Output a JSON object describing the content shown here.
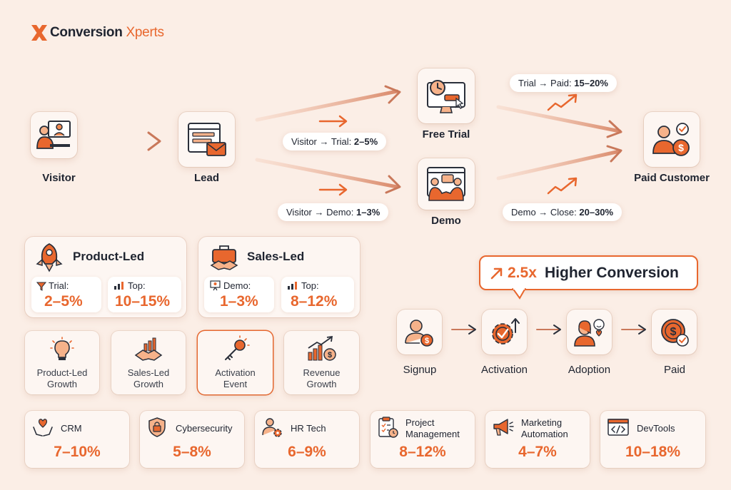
{
  "brand": {
    "name_part1": "Conversion",
    "name_part2": "Xperts"
  },
  "funnel": {
    "visitor": "Visitor",
    "lead": "Lead",
    "free_trial": "Free Trial",
    "demo": "Demo",
    "paid_customer": "Paid Customer",
    "rates": {
      "visitor_trial_prefix": "Visitor → Trial: ",
      "visitor_trial_value": "2–5%",
      "visitor_demo_prefix": "Visitor → Demo: ",
      "visitor_demo_value": "1–3%",
      "trial_paid_prefix": "Trial → Paid: ",
      "trial_paid_value": "15–20%",
      "demo_close_prefix": "Demo → Close: ",
      "demo_close_value": "20–30%"
    }
  },
  "product_led": {
    "title": "Product-Led",
    "trial_label": "Trial:",
    "trial_value": "2–5%",
    "top_label": "Top:",
    "top_value": "10–15%"
  },
  "sales_led": {
    "title": "Sales-Led",
    "demo_label": "Demo:",
    "demo_value": "1–3%",
    "top_label": "Top:",
    "top_value": "8–12%"
  },
  "growth_cards": [
    {
      "line1": "Product-Led",
      "line2": "Growth"
    },
    {
      "line1": "Sales-Led",
      "line2": "Growth"
    },
    {
      "line1": "Activation",
      "line2": "Event"
    },
    {
      "line1": "Revenue",
      "line2": "Growth"
    }
  ],
  "callout": {
    "multiplier": "2.5x",
    "text": "Higher Conversion"
  },
  "steps": [
    "Signup",
    "Activation",
    "Adoption",
    "Paid"
  ],
  "industries": [
    {
      "name": "CRM",
      "name2": "",
      "value": "7–10%"
    },
    {
      "name": "Cybersecurity",
      "name2": "",
      "value": "5–8%"
    },
    {
      "name": "HR Tech",
      "name2": "",
      "value": "6–9%"
    },
    {
      "name": "Project",
      "name2": "Management",
      "value": "8–12%"
    },
    {
      "name": "Marketing",
      "name2": "Automation",
      "value": "4–7%"
    },
    {
      "name": "DevTools",
      "name2": "",
      "value": "10–18%"
    }
  ],
  "colors": {
    "accent": "#e8672e",
    "background": "#fbeee6",
    "text": "#1f2430"
  }
}
